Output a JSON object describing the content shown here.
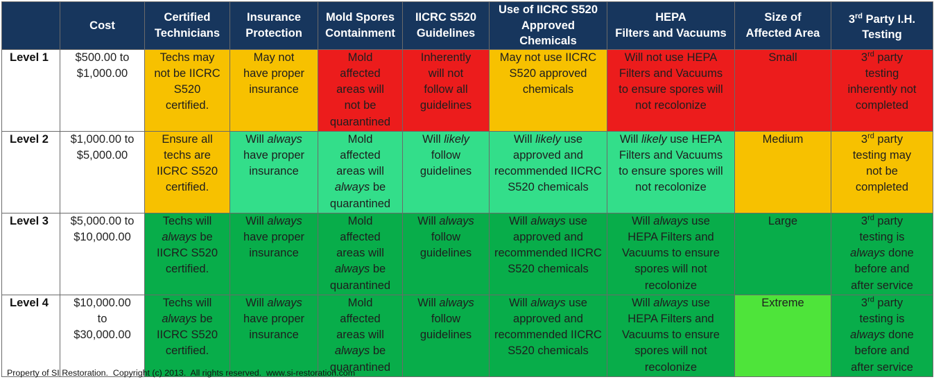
{
  "headers": [
    "",
    "Cost",
    "Certified Technicians",
    "Insurance Protection",
    "Mold Spores Containment",
    "IICRC S520 Guidelines",
    "Use of IICRC S520 Approved Chemicals",
    "HEPA Filters and Vacuums",
    "Size of Affected Area",
    "3rd Party I.H. Testing"
  ],
  "header_lines": [
    [
      ""
    ],
    [
      "Cost"
    ],
    [
      "Certified",
      "Technicians"
    ],
    [
      "Insurance",
      "Protection"
    ],
    [
      "Mold Spores",
      "Containment"
    ],
    [
      "IICRC S520",
      "Guidelines"
    ],
    [
      "Use of IICRC S520",
      "Approved Chemicals"
    ],
    [
      "HEPA",
      "Filters and Vacuums"
    ],
    [
      "Size of",
      "Affected Area"
    ],
    [
      "3rd Party I.H.",
      "Testing"
    ]
  ],
  "rows": [
    {
      "level": "Level 1",
      "cost": [
        "$500.00 to",
        "$1,000.00"
      ],
      "certified": [
        "Techs may",
        "not be IICRC",
        "S520",
        "certified."
      ],
      "insurance": [
        "May not",
        "have proper",
        "insurance"
      ],
      "containment": [
        "Mold",
        "affected",
        "areas will",
        "not be",
        "quarantined"
      ],
      "guidelines": [
        "Inherently",
        "will not",
        "follow all",
        "guidelines"
      ],
      "chemicals": [
        "May not use IICRC",
        "S520 approved",
        "chemicals"
      ],
      "hepa": [
        "Will not use HEPA",
        "Filters and Vacuums",
        "to ensure spores will",
        "not recolonize"
      ],
      "size": "Small",
      "testing": [
        "3rd party",
        "testing",
        "inherently not",
        "completed"
      ]
    },
    {
      "level": "Level 2",
      "cost": [
        "$1,000.00 to",
        "$5,000.00"
      ],
      "certified": [
        "Ensure all",
        "techs are",
        "IICRC S520",
        "certified."
      ],
      "insurance": [
        "Will always",
        "have proper",
        "insurance"
      ],
      "containment": [
        "Mold",
        "affected",
        "areas will",
        "always be",
        "quarantined"
      ],
      "guidelines": [
        "Will likely",
        "follow",
        "guidelines"
      ],
      "chemicals": [
        "Will likely use",
        "approved and",
        "recommended IICRC",
        "S520 chemicals"
      ],
      "hepa": [
        "Will likely use HEPA",
        "Filters and Vacuums",
        "to ensure spores will",
        "not recolonize"
      ],
      "size": "Medium",
      "testing": [
        "3rd party",
        "testing may",
        "not be",
        "completed"
      ]
    },
    {
      "level": "Level 3",
      "cost": [
        "$5,000.00 to",
        "$10,000.00"
      ],
      "certified": [
        "Techs will",
        "always be",
        "IICRC S520",
        "certified."
      ],
      "insurance": [
        "Will always",
        "have proper",
        "insurance"
      ],
      "containment": [
        "Mold",
        "affected",
        "areas will",
        "always be",
        "quarantined"
      ],
      "guidelines": [
        "Will always",
        "follow",
        "guidelines"
      ],
      "chemicals": [
        "Will always use",
        "approved and",
        "recommended IICRC",
        "S520 chemicals"
      ],
      "hepa": [
        "Will always use",
        "HEPA Filters and",
        "Vacuums to ensure",
        "spores will not",
        "recolonize"
      ],
      "size": "Large",
      "testing": [
        "3rd party",
        "testing is",
        "always done",
        "before and",
        "after service"
      ]
    },
    {
      "level": "Level 4",
      "cost": [
        "$10,000.00",
        "to",
        "$30,000.00"
      ],
      "certified": [
        "Techs will",
        "always be",
        "IICRC S520",
        "certified."
      ],
      "insurance": [
        "Will always",
        "have proper",
        "insurance"
      ],
      "containment": [
        "Mold",
        "affected",
        "areas will",
        "always be",
        "quarantined"
      ],
      "guidelines": [
        "Will always",
        "follow",
        "guidelines"
      ],
      "chemicals": [
        "Will always use",
        "approved and",
        "recommended IICRC",
        "S520 chemicals"
      ],
      "hepa": [
        "Will always use",
        "HEPA Filters and",
        "Vacuums to ensure",
        "spores will not",
        "recolonize"
      ],
      "size": "Extreme",
      "testing": [
        "3rd party",
        "testing is",
        "always done",
        "before and",
        "after service"
      ]
    }
  ],
  "row_colors": [
    {
      "certified": "#f7c100",
      "insurance": "#f7c100",
      "containment": "#ec1c1c",
      "guidelines": "#ec1c1c",
      "chemicals": "#f7c100",
      "hepa": "#ec1c1c",
      "size": "#ec1c1c",
      "testing": "#ec1c1c"
    },
    {
      "certified": "#f7c100",
      "insurance": "#33de8a",
      "containment": "#33de8a",
      "guidelines": "#33de8a",
      "chemicals": "#33de8a",
      "hepa": "#33de8a",
      "size": "#f7c100",
      "testing": "#f7c100"
    },
    {
      "certified": "#08ad4a",
      "insurance": "#08ad4a",
      "containment": "#08ad4a",
      "guidelines": "#08ad4a",
      "chemicals": "#08ad4a",
      "hepa": "#08ad4a",
      "size": "#08ad4a",
      "testing": "#08ad4a"
    },
    {
      "certified": "#08ad4a",
      "insurance": "#08ad4a",
      "containment": "#08ad4a",
      "guidelines": "#08ad4a",
      "chemicals": "#08ad4a",
      "hepa": "#08ad4a",
      "size": "#4ee43a",
      "testing": "#08ad4a"
    }
  ],
  "footer": "Property of SI Restoration.  Copyright (c) 2013.  All rights reserved.  www.si-restoration.com",
  "colors": {
    "header_bg": "#17365d",
    "header_text": "#ffffff"
  }
}
